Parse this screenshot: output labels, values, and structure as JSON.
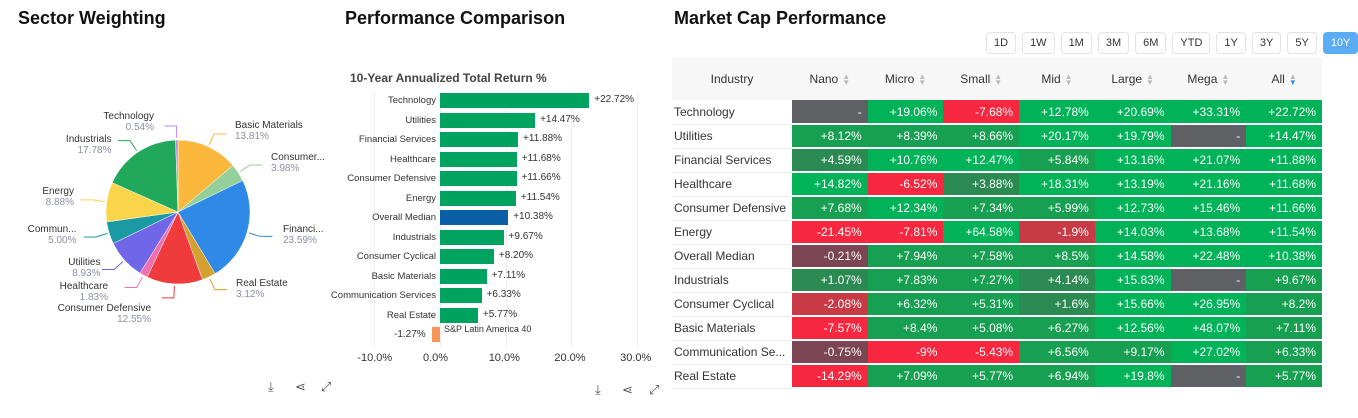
{
  "sector": {
    "title": "Sector Weighting",
    "slices": [
      {
        "label": "Basic Materials",
        "pct": "13.81%",
        "value": 13.81,
        "color": "#fbb83c"
      },
      {
        "label": "Consumer...",
        "pct": "3.98%",
        "value": 3.98,
        "color": "#95d09a"
      },
      {
        "label": "Financi...",
        "pct": "23.59%",
        "value": 23.59,
        "color": "#2e8ae6"
      },
      {
        "label": "Real Estate",
        "pct": "3.12%",
        "value": 3.12,
        "color": "#d4a030"
      },
      {
        "label": "Consumer Defensive",
        "pct": "12.55%",
        "value": 12.55,
        "color": "#ef3b3b"
      },
      {
        "label": "Healthcare",
        "pct": "1.83%",
        "value": 1.83,
        "color": "#f06fb0"
      },
      {
        "label": "Utilities",
        "pct": "8.93%",
        "value": 8.93,
        "color": "#7066e8"
      },
      {
        "label": "Commun...",
        "pct": "5.00%",
        "value": 5.0,
        "color": "#1b9aa3"
      },
      {
        "label": "Energy",
        "pct": "8.88%",
        "value": 8.88,
        "color": "#fad44a"
      },
      {
        "label": "Industrials",
        "pct": "17.78%",
        "value": 17.78,
        "color": "#22a85a"
      },
      {
        "label": "Technology",
        "pct": "0.54%",
        "value": 0.54,
        "color": "#b48ae8"
      }
    ]
  },
  "perf": {
    "title": "Performance Comparison",
    "subtitle": "10-Year Annualized Total Return %",
    "bars": [
      {
        "label": "Technology",
        "value": 22.72,
        "text": "+22.72%",
        "color": "#00a25f"
      },
      {
        "label": "Utilities",
        "value": 14.47,
        "text": "+14.47%",
        "color": "#00a25f"
      },
      {
        "label": "Financial Services",
        "value": 11.88,
        "text": "+11.88%",
        "color": "#00a25f"
      },
      {
        "label": "Healthcare",
        "value": 11.68,
        "text": "+11.68%",
        "color": "#00a25f"
      },
      {
        "label": "Consumer Defensive",
        "value": 11.66,
        "text": "+11.66%",
        "color": "#00a25f"
      },
      {
        "label": "Energy",
        "value": 11.54,
        "text": "+11.54%",
        "color": "#00a25f"
      },
      {
        "label": "Overall Median",
        "value": 10.38,
        "text": "+10.38%",
        "color": "#0a5fa6"
      },
      {
        "label": "Industrials",
        "value": 9.67,
        "text": "+9.67%",
        "color": "#00a25f"
      },
      {
        "label": "Consumer Cyclical",
        "value": 8.2,
        "text": "+8.20%",
        "color": "#00a25f"
      },
      {
        "label": "Basic Materials",
        "value": 7.11,
        "text": "+7.11%",
        "color": "#00a25f"
      },
      {
        "label": "Communication Services",
        "value": 6.33,
        "text": "+6.33%",
        "color": "#00a25f"
      },
      {
        "label": "Real Estate",
        "value": 5.77,
        "text": "+5.77%",
        "color": "#00a25f"
      },
      {
        "label": "S&P Latin America 40",
        "value": -1.27,
        "text": "-1.27%",
        "color": "#f7965a"
      }
    ],
    "ticks": [
      "-10.0%",
      "0.0%",
      "10.0%",
      "20.0%",
      "30.0%"
    ]
  },
  "market": {
    "title": "Market Cap Performance",
    "periods": [
      "1D",
      "1W",
      "1M",
      "3M",
      "6M",
      "YTD",
      "1Y",
      "3Y",
      "5Y",
      "10Y"
    ],
    "active_period": "10Y",
    "headers": [
      "Industry",
      "Nano",
      "Micro",
      "Small",
      "Mid",
      "Large",
      "Mega",
      "All"
    ],
    "rows": [
      [
        "Technology",
        "-",
        "+19.06%",
        "-7.68%",
        "+12.78%",
        "+20.69%",
        "+33.31%",
        "+22.72%"
      ],
      [
        "Utilities",
        "+8.12%",
        "+8.39%",
        "+8.66%",
        "+20.17%",
        "+19.79%",
        "-",
        "+14.47%"
      ],
      [
        "Financial Services",
        "+4.59%",
        "+10.76%",
        "+12.47%",
        "+5.84%",
        "+13.16%",
        "+21.07%",
        "+11.88%"
      ],
      [
        "Healthcare",
        "+14.82%",
        "-6.52%",
        "+3.88%",
        "+18.31%",
        "+13.19%",
        "+21.16%",
        "+11.68%"
      ],
      [
        "Consumer Defensive",
        "+7.68%",
        "+12.34%",
        "+7.34%",
        "+5.99%",
        "+12.73%",
        "+15.46%",
        "+11.66%"
      ],
      [
        "Energy",
        "-21.45%",
        "-7.81%",
        "+64.58%",
        "-1.9%",
        "+14.03%",
        "+13.68%",
        "+11.54%"
      ],
      [
        "Overall Median",
        "-0.21%",
        "+7.94%",
        "+7.58%",
        "+8.5%",
        "+14.58%",
        "+22.48%",
        "+10.38%"
      ],
      [
        "Industrials",
        "+1.07%",
        "+7.83%",
        "+7.27%",
        "+4.14%",
        "+15.83%",
        "-",
        "+9.67%"
      ],
      [
        "Consumer Cyclical",
        "-2.08%",
        "+6.32%",
        "+5.31%",
        "+1.6%",
        "+15.66%",
        "+26.95%",
        "+8.2%"
      ],
      [
        "Basic Materials",
        "-7.57%",
        "+8.4%",
        "+5.08%",
        "+6.27%",
        "+12.56%",
        "+48.07%",
        "+7.11%"
      ],
      [
        "Communication Se...",
        "-0.75%",
        "-9%",
        "-5.43%",
        "+6.56%",
        "+9.17%",
        "+27.02%",
        "+6.33%"
      ],
      [
        "Real Estate",
        "-14.29%",
        "+7.09%",
        "+5.77%",
        "+6.94%",
        "+19.8%",
        "-",
        "+5.77%"
      ]
    ]
  }
}
